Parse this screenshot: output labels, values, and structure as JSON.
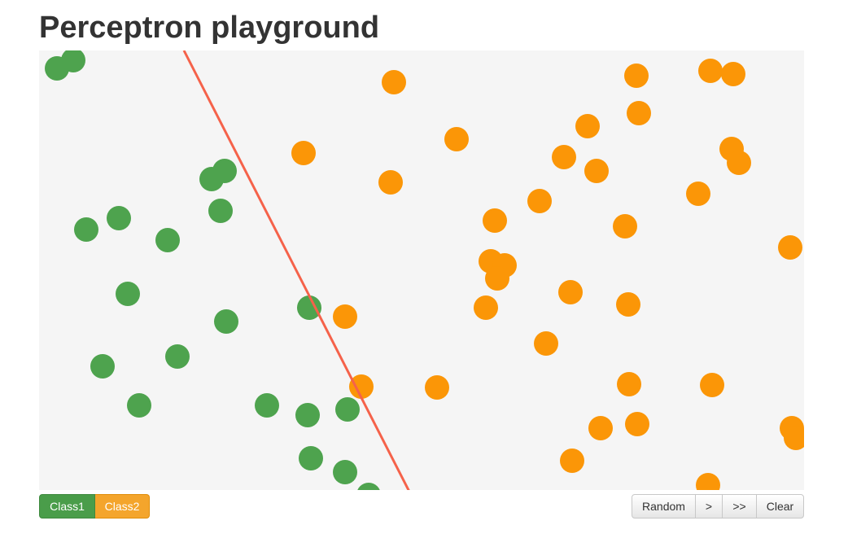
{
  "page": {
    "title": "Perceptron playground"
  },
  "colors": {
    "class1": "#4ea34e",
    "class2": "#fb9607",
    "line": "#f5624a",
    "canvas_bg": "#f5f5f5"
  },
  "class_buttons": {
    "class1_label": "Class1",
    "class2_label": "Class2"
  },
  "controls": {
    "random_label": "Random",
    "step_label": ">",
    "run_label": ">>",
    "clear_label": "Clear"
  },
  "chart_data": {
    "type": "scatter",
    "xlim": [
      0,
      940
    ],
    "ylim": [
      0,
      540
    ],
    "series": [
      {
        "class": "class1",
        "points": [
          [
            22,
            22
          ],
          [
            42,
            12
          ],
          [
            212,
            158
          ],
          [
            228,
            148
          ],
          [
            223,
            197
          ],
          [
            58,
            220
          ],
          [
            98,
            206
          ],
          [
            158,
            233
          ],
          [
            109,
            299
          ],
          [
            230,
            333
          ],
          [
            332,
            316
          ],
          [
            78,
            388
          ],
          [
            170,
            376
          ],
          [
            123,
            436
          ],
          [
            280,
            436
          ],
          [
            330,
            448
          ],
          [
            379,
            441
          ],
          [
            334,
            501
          ],
          [
            376,
            518
          ],
          [
            405,
            546
          ]
        ]
      },
      {
        "class": "class2",
        "points": [
          [
            436,
            39
          ],
          [
            325,
            126
          ],
          [
            432,
            162
          ],
          [
            513,
            109
          ],
          [
            734,
            31
          ],
          [
            825,
            25
          ],
          [
            853,
            29
          ],
          [
            737,
            77
          ],
          [
            674,
            93
          ],
          [
            645,
            131
          ],
          [
            685,
            148
          ],
          [
            851,
            121
          ],
          [
            860,
            138
          ],
          [
            615,
            185
          ],
          [
            810,
            176
          ],
          [
            560,
            209
          ],
          [
            720,
            216
          ],
          [
            923,
            242
          ],
          [
            555,
            259
          ],
          [
            572,
            264
          ],
          [
            563,
            280
          ],
          [
            376,
            327
          ],
          [
            653,
            297
          ],
          [
            549,
            316
          ],
          [
            724,
            312
          ],
          [
            623,
            360
          ],
          [
            396,
            413
          ],
          [
            489,
            414
          ],
          [
            725,
            410
          ],
          [
            827,
            411
          ],
          [
            690,
            464
          ],
          [
            735,
            459
          ],
          [
            925,
            464
          ],
          [
            930,
            476
          ],
          [
            655,
            504
          ],
          [
            822,
            534
          ]
        ]
      }
    ],
    "decision_line": [
      [
        178,
        0
      ],
      [
        455,
        542
      ]
    ]
  }
}
